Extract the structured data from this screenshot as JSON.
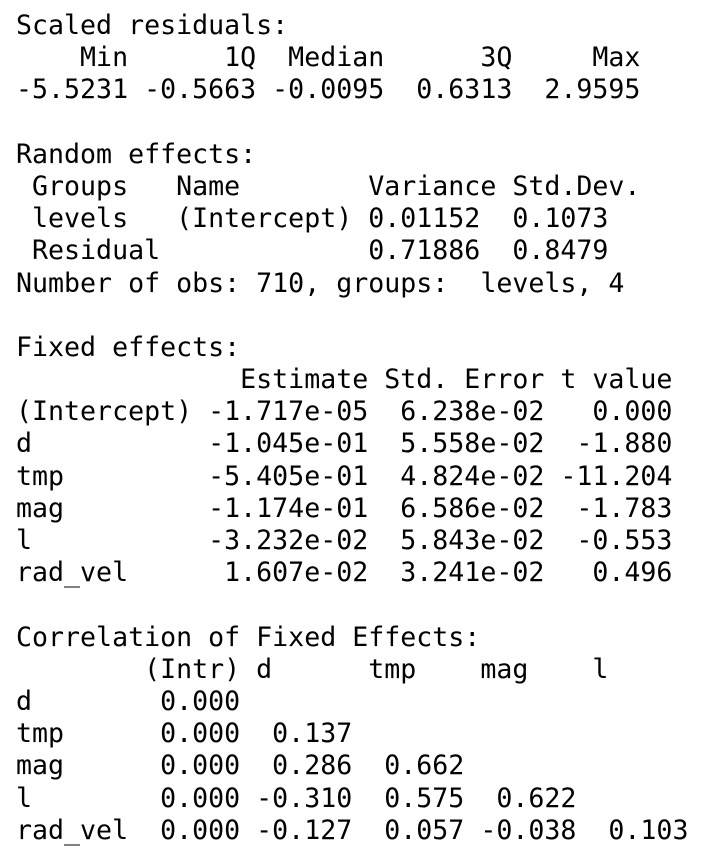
{
  "output": {
    "lines": [
      "Scaled residuals:",
      "    Min      1Q  Median      3Q     Max",
      "-5.5231 -0.5663 -0.0095  0.6313  2.9595",
      "",
      "Random effects:",
      " Groups   Name        Variance Std.Dev.",
      " levels   (Intercept) 0.01152  0.1073",
      " Residual             0.71886  0.8479",
      "Number of obs: 710, groups:  levels, 4",
      "",
      "Fixed effects:",
      "              Estimate Std. Error t value",
      "(Intercept) -1.717e-05  6.238e-02   0.000",
      "d           -1.045e-01  5.558e-02  -1.880",
      "tmp         -5.405e-01  4.824e-02 -11.204",
      "mag         -1.174e-01  6.586e-02  -1.783",
      "l           -3.232e-02  5.843e-02  -0.553",
      "rad_vel      1.607e-02  3.241e-02   0.496",
      "",
      "Correlation of Fixed Effects:",
      "        (Intr) d      tmp    mag    l",
      "d        0.000",
      "tmp      0.000  0.137",
      "mag      0.000  0.286  0.662",
      "l        0.000 -0.310  0.575  0.622",
      "rad_vel  0.000 -0.127  0.057 -0.038  0.103"
    ]
  }
}
